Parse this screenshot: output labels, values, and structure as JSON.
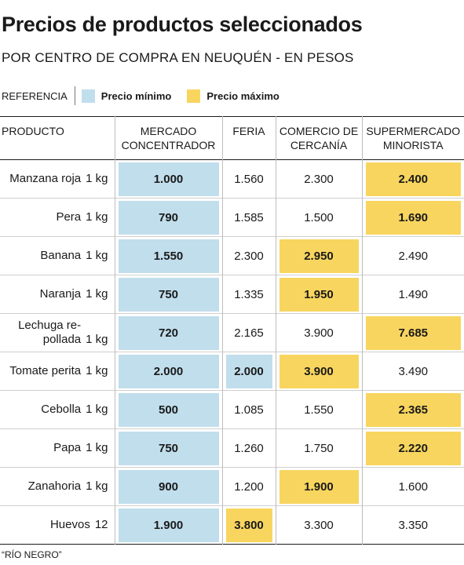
{
  "header": {
    "title": "Precios de productos seleccionados",
    "subtitle": "POR CENTRO DE COMPRA EN NEUQUÉN - EN PESOS"
  },
  "legend": {
    "label": "REFERENCIA",
    "min_label": "Precio mínimo",
    "max_label": "Precio máximo",
    "min_color": "#c1deec",
    "max_color": "#f8d55e"
  },
  "chart_data": {
    "type": "table",
    "title": "Precios de productos seleccionados",
    "subtitle": "POR CENTRO DE COMPRA EN NEUQUÉN - EN PESOS",
    "columns": {
      "product": "PRODUCTO",
      "mercado": [
        "MERCADO",
        "CONCENTRADOR"
      ],
      "feria": "FERIA",
      "comercio": [
        "COMERCIO DE",
        "CERCANÍA"
      ],
      "super": [
        "SUPERMERCADO",
        "MINORISTA"
      ]
    },
    "rows": [
      {
        "name": [
          "Manzana roja"
        ],
        "qty": "1 kg",
        "prices": [
          "1.000",
          "1.560",
          "2.300",
          "2.400"
        ],
        "min": [
          0
        ],
        "max": [
          3
        ]
      },
      {
        "name": [
          "Pera"
        ],
        "qty": "1 kg",
        "prices": [
          "790",
          "1.585",
          "1.500",
          "1.690"
        ],
        "min": [
          0
        ],
        "max": [
          3
        ]
      },
      {
        "name": [
          "Banana"
        ],
        "qty": "1 kg",
        "prices": [
          "1.550",
          "2.300",
          "2.950",
          "2.490"
        ],
        "min": [
          0
        ],
        "max": [
          2
        ]
      },
      {
        "name": [
          "Naranja"
        ],
        "qty": "1 kg",
        "prices": [
          "750",
          "1.335",
          "1.950",
          "1.490"
        ],
        "min": [
          0
        ],
        "max": [
          2
        ]
      },
      {
        "name": [
          "Lechuga re-",
          "pollada"
        ],
        "qty": "1 kg",
        "prices": [
          "720",
          "2.165",
          "3.900",
          "7.685"
        ],
        "min": [
          0
        ],
        "max": [
          3
        ]
      },
      {
        "name": [
          "Tomate perita"
        ],
        "qty": "1 kg",
        "prices": [
          "2.000",
          "2.000",
          "3.900",
          "3.490"
        ],
        "min": [
          0,
          1
        ],
        "max": [
          2
        ]
      },
      {
        "name": [
          "Cebolla"
        ],
        "qty": "1 kg",
        "prices": [
          "500",
          "1.085",
          "1.550",
          "2.365"
        ],
        "min": [
          0
        ],
        "max": [
          3
        ]
      },
      {
        "name": [
          "Papa"
        ],
        "qty": "1 kg",
        "prices": [
          "750",
          "1.260",
          "1.750",
          "2.220"
        ],
        "min": [
          0
        ],
        "max": [
          3
        ]
      },
      {
        "name": [
          "Zanahoria"
        ],
        "qty": "1 kg",
        "prices": [
          "900",
          "1.200",
          "1.900",
          "1.600"
        ],
        "min": [
          0
        ],
        "max": [
          2
        ]
      },
      {
        "name": [
          "Huevos"
        ],
        "qty": "12",
        "prices": [
          "1.900",
          "3.800",
          "3.300",
          "3.350"
        ],
        "min": [
          0
        ],
        "max": [
          1
        ]
      }
    ]
  },
  "footer": {
    "source": "“RÍO NEGRO”"
  }
}
